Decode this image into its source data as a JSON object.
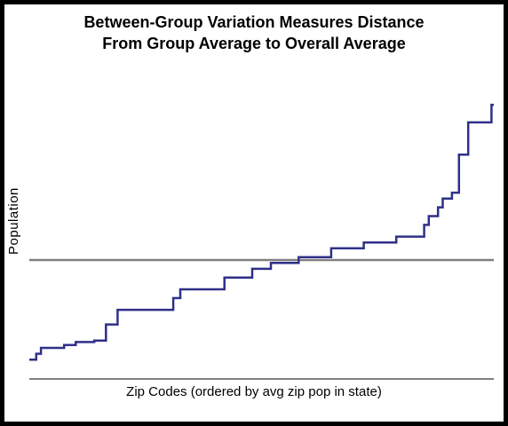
{
  "chart_data": {
    "type": "line",
    "title_line1": "Between-Group Variation Measures Distance",
    "title_line2": "From Group Average to Overall Average",
    "xlabel": "Zip Codes (ordered by avg zip pop in state)",
    "ylabel": "Population",
    "grid": false,
    "legend": "none",
    "xlim": [
      0,
      100
    ],
    "ylim": [
      0,
      100
    ],
    "overall_average": 40,
    "series": [
      {
        "step": true,
        "x": [
          0,
          1.5,
          2.5,
          7.5,
          10,
          14,
          16.5,
          19,
          31,
          32.5,
          42,
          48,
          52,
          58,
          65,
          72,
          79,
          85,
          86,
          88,
          89,
          91,
          92.5,
          94.5,
          95,
          99.5,
          100
        ],
        "y": [
          6,
          8,
          10,
          11,
          12,
          12.5,
          18,
          23,
          27,
          30,
          34,
          37,
          39,
          41,
          44,
          46,
          48,
          52,
          55,
          58,
          61,
          63,
          76,
          87,
          87,
          93,
          93
        ]
      }
    ],
    "colors": {
      "series": "#2f3088",
      "average_line": "#808080",
      "axis": "#000000",
      "frame": "#000000",
      "background": "#ffffff"
    }
  }
}
